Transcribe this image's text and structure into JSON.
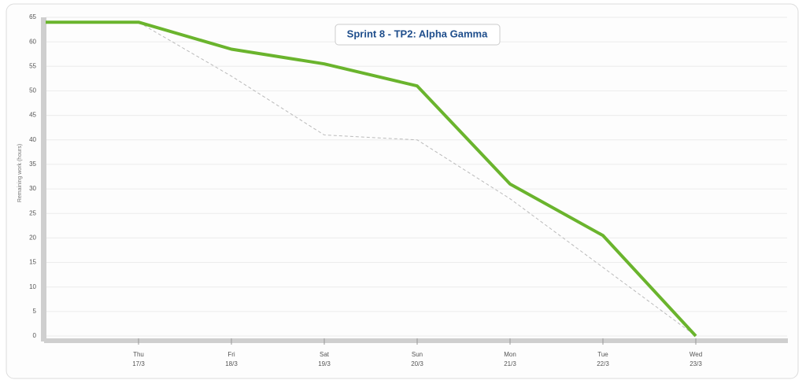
{
  "chart_data": {
    "type": "line",
    "title": "Sprint 8 - TP2: Alpha Gamma",
    "y_axis_label": "Remaining work (hours)",
    "categories": [
      null,
      [
        "Thu",
        "17/3"
      ],
      [
        "Fri",
        "18/3"
      ],
      [
        "Sat",
        "19/3"
      ],
      [
        "Sun",
        "20/3"
      ],
      [
        "Mon",
        "21/3"
      ],
      [
        "Tue",
        "22/3"
      ],
      [
        "Wed",
        "23/3"
      ],
      null
    ],
    "series": [
      {
        "color": "#bbbbbb",
        "dashed": true,
        "values": [
          64,
          64,
          53,
          41,
          40,
          28,
          14,
          0,
          null
        ]
      },
      {
        "color": "#6ab42d",
        "dashed": false,
        "values": [
          64,
          64,
          58.5,
          55.5,
          51,
          31,
          20.5,
          0,
          null
        ]
      }
    ],
    "ylim": [
      0,
      65
    ],
    "yticks": [
      0,
      5,
      10,
      15,
      20,
      25,
      30,
      35,
      40,
      45,
      50,
      55,
      60,
      65
    ],
    "grid": true
  }
}
